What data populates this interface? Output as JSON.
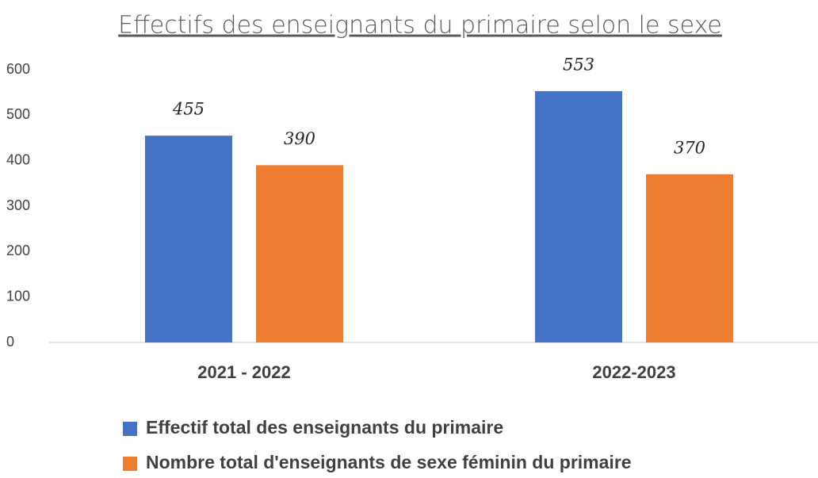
{
  "chart_data": {
    "type": "bar",
    "title": "Effectifs des enseignants du primaire selon le sexe",
    "categories": [
      "2021 - 2022",
      "2022-2023"
    ],
    "series": [
      {
        "name": "Effectif total des enseignants du primaire",
        "color": "#4472c4",
        "values": [
          455,
          553
        ]
      },
      {
        "name": "Nombre total d'enseignants de sexe féminin du primaire",
        "color": "#ed7d31",
        "values": [
          390,
          370
        ]
      }
    ],
    "ylim": [
      0,
      600
    ],
    "yticks": [
      0,
      100,
      200,
      300,
      400,
      500,
      600
    ],
    "grid": false,
    "legend": "bottom"
  }
}
